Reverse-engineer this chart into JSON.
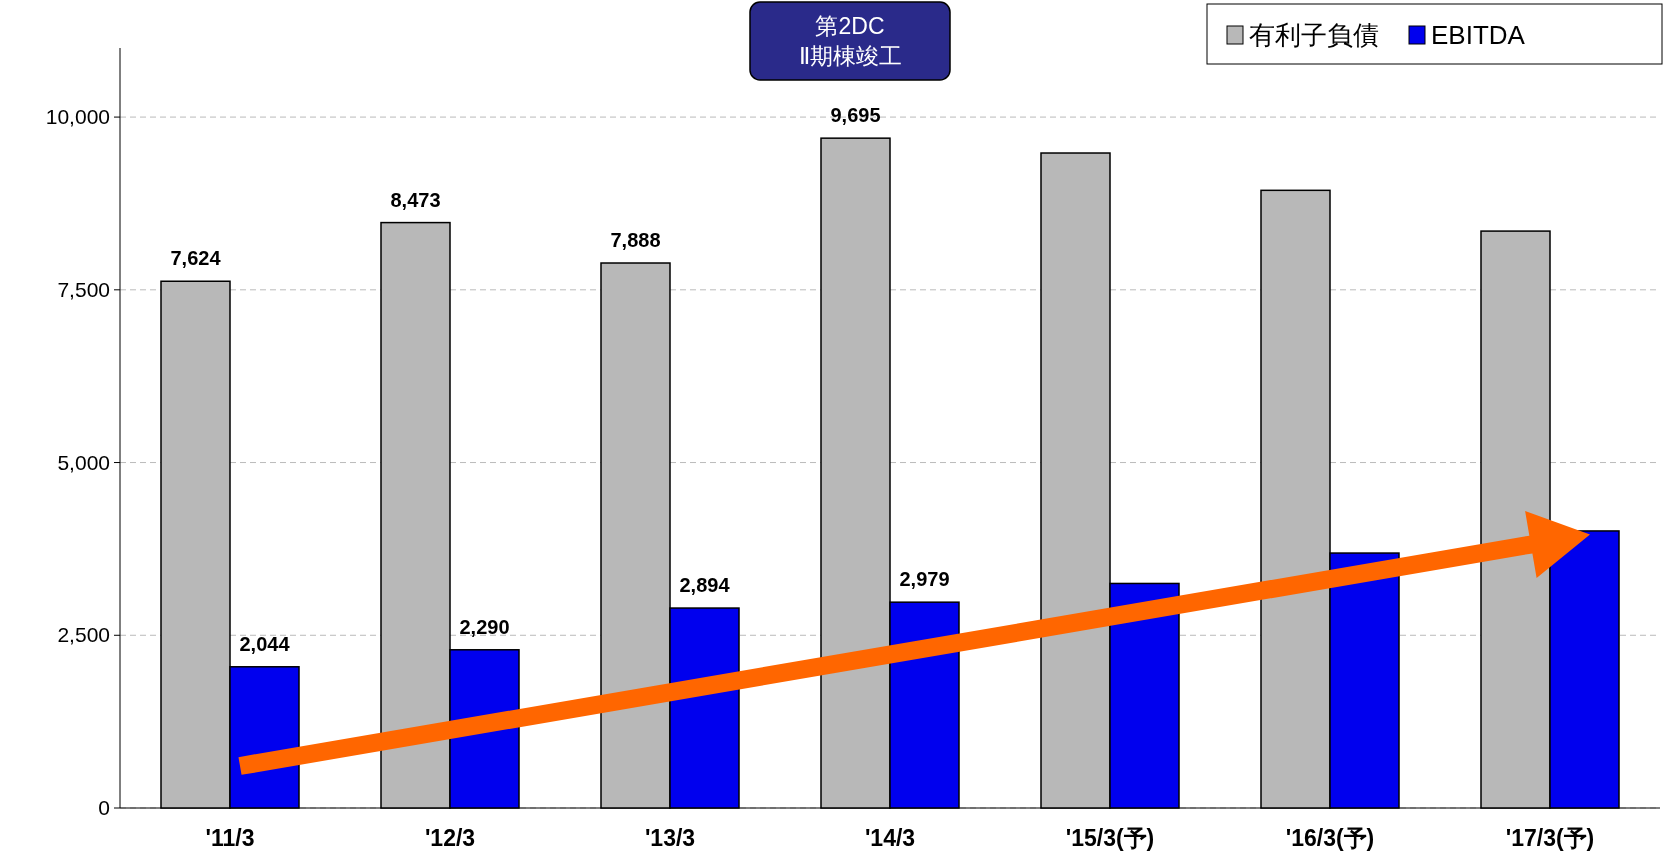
{
  "chart_data": {
    "type": "bar",
    "categories": [
      "'11/3",
      "'12/3",
      "'13/3",
      "'14/3",
      "'15/3(予)",
      "'16/3(予)",
      "'17/3(予)"
    ],
    "series": [
      {
        "name": "有利子負債",
        "color": "#b8b8b8",
        "values": [
          7624,
          8473,
          7888,
          9695,
          9480,
          8940,
          8350
        ],
        "value_labels": [
          "7,624",
          "8,473",
          "7,888",
          "9,695",
          null,
          null,
          null
        ]
      },
      {
        "name": "EBITDA",
        "color": "#0000ee",
        "values": [
          2044,
          2290,
          2894,
          2979,
          3250,
          3690,
          4010
        ],
        "value_labels": [
          "2,044",
          "2,290",
          "2,894",
          "2,979",
          null,
          null,
          null
        ]
      }
    ],
    "ylim": [
      0,
      11000
    ],
    "yticks": [
      0,
      {
        "value": 2500,
        "label": "2,500"
      },
      {
        "value": 5000,
        "label": "5,000"
      },
      {
        "value": 7500,
        "label": "7,500"
      },
      {
        "value": 10000,
        "label": "10,000"
      }
    ],
    "grid": "y",
    "legend": "top right",
    "annotations": [
      "第2DC\nⅡ期棟竣工"
    ]
  }
}
